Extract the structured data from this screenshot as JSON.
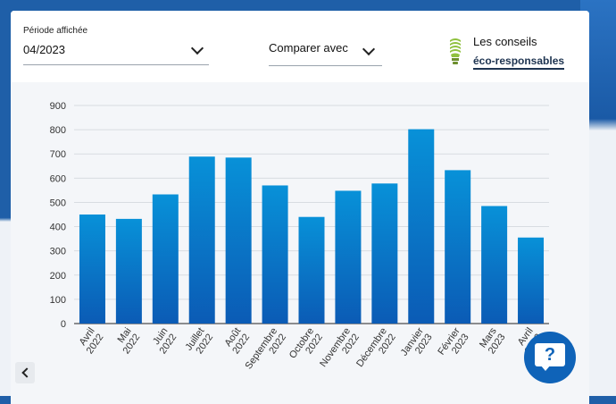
{
  "header": {
    "period_label": "Période affichée",
    "period_value": "04/2023",
    "compare_label": "Comparer avec",
    "eco_line1": "Les conseils",
    "eco_link": "éco-responsables"
  },
  "colors": {
    "bar_top": "#0891d8",
    "bar_bottom": "#0b5bb5",
    "help_button": "#0f63b8"
  },
  "chart_data": {
    "type": "bar",
    "categories": [
      [
        "Avril",
        "2022"
      ],
      [
        "Mai",
        "2022"
      ],
      [
        "Juin",
        "2022"
      ],
      [
        "Juillet",
        "2022"
      ],
      [
        "Août",
        "2022"
      ],
      [
        "Septembre",
        "2022"
      ],
      [
        "Octobre",
        "2022"
      ],
      [
        "Novembre",
        "2022"
      ],
      [
        "Décembre",
        "2022"
      ],
      [
        "Janvier",
        "2023"
      ],
      [
        "Février",
        "2023"
      ],
      [
        "Mars",
        "2023"
      ],
      [
        "Avril",
        "2023"
      ]
    ],
    "values": [
      450,
      432,
      533,
      689,
      685,
      570,
      440,
      548,
      578,
      802,
      633,
      485,
      355
    ],
    "ylim": [
      0,
      900
    ],
    "yticks": [
      0,
      100,
      200,
      300,
      400,
      500,
      600,
      700,
      800,
      900
    ],
    "grid": true
  },
  "icons": {
    "bulb": "eco-bulb-icon",
    "prev": "chevron-left-icon",
    "help": "help-chat-icon"
  }
}
